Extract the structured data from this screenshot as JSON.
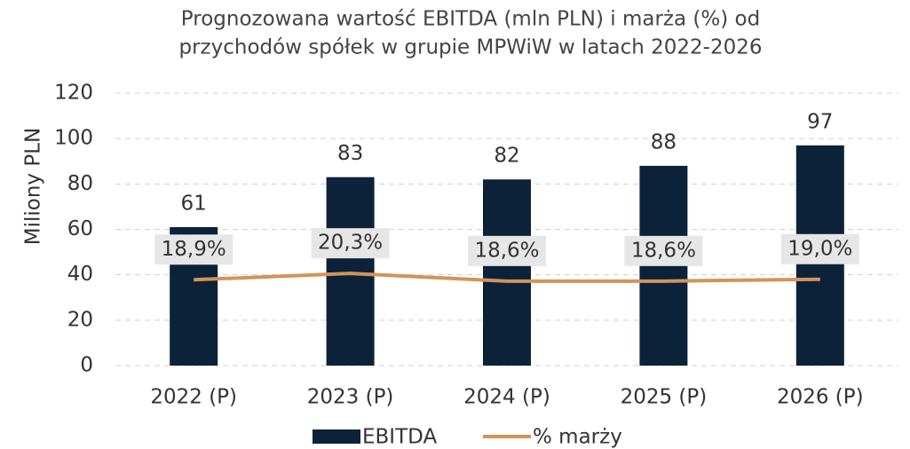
{
  "chart_data": {
    "type": "bar",
    "title": [
      "Prognozowana wartość EBITDA (mln PLN) i marża (%) od",
      "przychodów spółek w grupie MPWiW w latach 2022-2026"
    ],
    "y_label": "Miliony PLN",
    "categories": [
      "2022 (P)",
      "2023 (P)",
      "2024 (P)",
      "2025 (P)",
      "2026 (P)"
    ],
    "series": [
      {
        "name": "EBITDA",
        "type": "bar",
        "color": "#0b2239",
        "values": [
          61,
          83,
          82,
          88,
          97
        ]
      },
      {
        "name": "% marży",
        "type": "line",
        "axis": "y2",
        "color": "#d4935a",
        "values": [
          18.9,
          20.3,
          18.6,
          18.6,
          19.0
        ],
        "value_labels": [
          "18,9%",
          "20,3%",
          "18,6%",
          "18,6%",
          "19,0%"
        ]
      }
    ],
    "ylim": [
      0,
      120
    ],
    "yticks": [
      0,
      20,
      40,
      60,
      80,
      100,
      120
    ],
    "y2lim": [
      0,
      60
    ],
    "grid": true,
    "legend": "bottom"
  }
}
